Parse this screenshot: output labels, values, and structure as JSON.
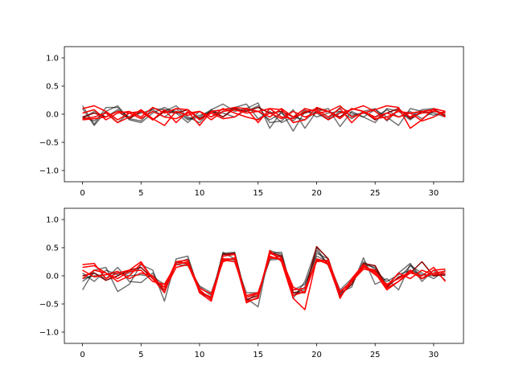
{
  "chart_data": [
    {
      "type": "line",
      "title": "",
      "xlabel": "",
      "ylabel": "",
      "xlim": [
        -1.55,
        32.55
      ],
      "ylim": [
        -1.2,
        1.2
      ],
      "xticks": [
        0,
        5,
        10,
        15,
        20,
        25,
        30
      ],
      "yticks": [
        -1.0,
        -0.5,
        0.0,
        0.5,
        1.0
      ],
      "ytick_labels": [
        "−1.0",
        "−0.5",
        "0.0",
        "0.5",
        "1.0"
      ],
      "grid": false,
      "legend": "none",
      "x": [
        0,
        1,
        2,
        3,
        4,
        5,
        6,
        7,
        8,
        9,
        10,
        11,
        12,
        13,
        14,
        15,
        16,
        17,
        18,
        19,
        20,
        21,
        22,
        23,
        24,
        25,
        26,
        27,
        28,
        29,
        30,
        31
      ],
      "series": [
        {
          "color": "#000000",
          "opacity": 0.55,
          "values": [
            0.15,
            -0.18,
            0.12,
            0.12,
            -0.08,
            -0.12,
            0.1,
            0.08,
            0.05,
            -0.1,
            -0.05,
            0.08,
            0.18,
            0.05,
            0.1,
            0.2,
            -0.25,
            0.05,
            -0.3,
            0.05,
            0.02,
            -0.1,
            0.05,
            -0.08,
            0.05,
            0.1,
            -0.12,
            0.08,
            -0.05,
            0.08,
            0.1,
            -0.03
          ]
        },
        {
          "color": "#000000",
          "opacity": 0.55,
          "values": [
            -0.05,
            -0.12,
            0.05,
            0.15,
            -0.1,
            -0.15,
            0.02,
            0.12,
            0.02,
            -0.15,
            0.05,
            -0.05,
            0.05,
            0.1,
            0.05,
            0.15,
            -0.15,
            -0.12,
            0.08,
            -0.25,
            0.05,
            0.1,
            -0.22,
            0.05,
            -0.05,
            0.08,
            -0.05,
            -0.2,
            0.1,
            0.05,
            -0.02,
            0.05
          ]
        },
        {
          "color": "#000000",
          "opacity": 0.55,
          "values": [
            0.1,
            -0.2,
            0.05,
            -0.15,
            0.02,
            0.05,
            -0.1,
            0.05,
            0.15,
            -0.05,
            -0.15,
            0.08,
            -0.05,
            0.12,
            0.18,
            -0.08,
            0.05,
            -0.15,
            -0.05,
            -0.1,
            0.05,
            -0.08,
            0.12,
            0.02,
            -0.05,
            -0.15,
            0.1,
            0.05,
            -0.1,
            0.05,
            0.02,
            -0.05
          ]
        },
        {
          "color": "#000000",
          "opacity": 0.55,
          "values": [
            -0.08,
            0.05,
            -0.05,
            0.08,
            -0.05,
            0.02,
            0.08,
            -0.05,
            0.1,
            -0.08,
            -0.02,
            0.05,
            0.02,
            -0.05,
            0.08,
            0.05,
            -0.1,
            0.02,
            -0.12,
            0.08,
            -0.05,
            0.02,
            0.05,
            -0.02,
            0.02,
            -0.05,
            0.08,
            -0.05,
            0.05,
            -0.08,
            0.05,
            0.02
          ]
        },
        {
          "color": "#8b0000",
          "opacity": 1.0,
          "values": [
            -0.05,
            0.02,
            -0.05,
            0.05,
            -0.08,
            0.05,
            -0.1,
            0.05,
            0.02,
            0.08,
            -0.08,
            0.05,
            -0.05,
            0.1,
            0.05,
            0.12,
            0.02,
            0.05,
            -0.05,
            0.02,
            0.1,
            0.05,
            -0.05,
            0.1,
            0.05,
            -0.1,
            0.02,
            0.1,
            -0.08,
            0.05,
            0.08,
            -0.02
          ]
        },
        {
          "color": "#ff0000",
          "opacity": 1.0,
          "values": [
            0.1,
            0.15,
            0.05,
            -0.1,
            0.02,
            0.05,
            -0.1,
            0.08,
            -0.15,
            0.05,
            -0.2,
            0.05,
            0.08,
            0.12,
            0.1,
            -0.15,
            0.1,
            0.08,
            -0.15,
            -0.1,
            0.12,
            0.05,
            0.15,
            -0.05,
            0.02,
            0.08,
            0.15,
            0.12,
            -0.25,
            -0.1,
            0.1,
            0.05
          ]
        },
        {
          "color": "#ff0000",
          "opacity": 1.0,
          "values": [
            -0.08,
            -0.05,
            0.02,
            -0.15,
            -0.05,
            0.08,
            -0.08,
            -0.2,
            0.05,
            -0.02,
            0.05,
            -0.1,
            0.05,
            0.08,
            0.02,
            0.05,
            0.1,
            -0.05,
            -0.08,
            0.05,
            0.08,
            -0.05,
            0.1,
            -0.15,
            0.05,
            -0.08,
            -0.05,
            0.05,
            0.02,
            -0.12,
            -0.05,
            0.05
          ]
        },
        {
          "color": "#ff0000",
          "opacity": 1.0,
          "values": [
            0.02,
            0.08,
            -0.1,
            0.02,
            0.05,
            -0.05,
            0.12,
            0.02,
            0.1,
            0.08,
            -0.1,
            0.02,
            -0.08,
            -0.05,
            0.1,
            0.05,
            -0.05,
            0.1,
            -0.05,
            0.1,
            0.05,
            -0.1,
            0.02,
            0.08,
            0.15,
            0.05,
            -0.1,
            0.08,
            -0.05,
            0.02,
            0.05,
            0.02
          ]
        },
        {
          "color": "#ff0000",
          "opacity": 1.0,
          "values": [
            -0.1,
            -0.08,
            -0.05,
            0.05,
            0.02,
            -0.08,
            0.05,
            -0.05,
            -0.08,
            0.02,
            0.05,
            -0.05,
            0.1,
            0.02,
            -0.05,
            -0.1,
            0.02,
            -0.08,
            0.05,
            -0.05,
            0.02,
            0.05,
            -0.08,
            0.1,
            0.05,
            -0.05,
            0.02,
            -0.05,
            0.02,
            0.05,
            0.08,
            -0.05
          ]
        }
      ]
    },
    {
      "type": "line",
      "title": "",
      "xlabel": "",
      "ylabel": "",
      "xlim": [
        -1.55,
        32.55
      ],
      "ylim": [
        -1.2,
        1.2
      ],
      "xticks": [
        0,
        5,
        10,
        15,
        20,
        25,
        30
      ],
      "yticks": [
        -1.0,
        -0.5,
        0.0,
        0.5,
        1.0
      ],
      "ytick_labels": [
        "−1.0",
        "−0.5",
        "0.0",
        "0.5",
        "1.0"
      ],
      "grid": false,
      "legend": "none",
      "x": [
        0,
        1,
        2,
        3,
        4,
        5,
        6,
        7,
        8,
        9,
        10,
        11,
        12,
        13,
        14,
        15,
        16,
        17,
        18,
        19,
        20,
        21,
        22,
        23,
        24,
        25,
        26,
        27,
        28,
        29,
        30,
        31
      ],
      "series": [
        {
          "color": "#000000",
          "opacity": 0.55,
          "values": [
            -0.25,
            0.1,
            0.15,
            -0.28,
            -0.15,
            0.2,
            0.1,
            -0.45,
            0.3,
            0.35,
            -0.3,
            -0.4,
            0.4,
            0.42,
            -0.4,
            -0.55,
            0.45,
            0.38,
            -0.4,
            -0.1,
            0.5,
            0.18,
            -0.3,
            -0.2,
            0.32,
            -0.15,
            -0.05,
            -0.25,
            0.2,
            -0.1,
            0.1,
            -0.08
          ]
        },
        {
          "color": "#000000",
          "opacity": 0.55,
          "values": [
            -0.1,
            0.05,
            -0.05,
            0.15,
            -0.1,
            -0.12,
            0.05,
            -0.3,
            0.25,
            0.2,
            -0.2,
            -0.35,
            0.35,
            0.4,
            -0.45,
            -0.4,
            0.4,
            0.42,
            -0.35,
            -0.2,
            0.45,
            0.2,
            -0.38,
            -0.1,
            0.2,
            0.15,
            -0.2,
            0.05,
            0.22,
            -0.05,
            0.05,
            0.0
          ]
        },
        {
          "color": "#000000",
          "opacity": 0.55,
          "values": [
            0.05,
            -0.1,
            0.1,
            0.02,
            0.05,
            0.15,
            -0.05,
            -0.25,
            0.22,
            0.3,
            -0.25,
            -0.42,
            0.42,
            0.3,
            -0.45,
            -0.3,
            0.3,
            0.35,
            -0.3,
            -0.25,
            0.4,
            0.3,
            -0.32,
            -0.15,
            0.25,
            0.12,
            -0.15,
            -0.05,
            0.18,
            0.05,
            -0.05,
            0.1
          ]
        },
        {
          "color": "#000000",
          "opacity": 0.55,
          "values": [
            -0.05,
            0.0,
            0.02,
            0.05,
            0.0,
            0.02,
            -0.02,
            -0.15,
            0.2,
            0.18,
            -0.18,
            -0.3,
            0.3,
            0.28,
            -0.3,
            -0.3,
            0.28,
            0.3,
            -0.25,
            -0.15,
            0.35,
            0.25,
            -0.25,
            -0.05,
            0.15,
            0.1,
            -0.1,
            0.02,
            0.1,
            0.02,
            0.0,
            0.05
          ]
        },
        {
          "color": "#8b0000",
          "opacity": 1.0,
          "values": [
            0.0,
            0.05,
            -0.08,
            0.0,
            0.1,
            0.15,
            -0.05,
            -0.2,
            0.25,
            0.28,
            -0.3,
            -0.38,
            0.38,
            0.4,
            -0.42,
            -0.35,
            0.42,
            0.35,
            -0.3,
            -0.3,
            0.52,
            0.3,
            -0.35,
            -0.15,
            0.22,
            0.18,
            -0.2,
            -0.02,
            0.05,
            0.25,
            0.0,
            0.02
          ]
        },
        {
          "color": "#ff0000",
          "opacity": 1.0,
          "values": [
            0.2,
            0.22,
            -0.05,
            0.05,
            0.1,
            0.25,
            -0.05,
            -0.3,
            0.25,
            0.28,
            -0.3,
            -0.45,
            0.3,
            0.3,
            -0.45,
            -0.4,
            0.45,
            0.25,
            -0.4,
            -0.6,
            0.3,
            0.25,
            -0.4,
            -0.05,
            0.2,
            0.05,
            -0.25,
            -0.1,
            0.05,
            0.0,
            0.15,
            -0.1
          ]
        },
        {
          "color": "#ff0000",
          "opacity": 1.0,
          "values": [
            0.15,
            0.18,
            0.05,
            -0.1,
            0.0,
            0.22,
            -0.05,
            -0.2,
            0.25,
            0.22,
            -0.25,
            -0.42,
            0.35,
            0.38,
            -0.48,
            -0.38,
            0.4,
            0.32,
            -0.35,
            -0.28,
            0.3,
            0.2,
            -0.38,
            -0.1,
            0.15,
            0.1,
            -0.22,
            -0.1,
            0.1,
            -0.05,
            0.1,
            0.12
          ]
        },
        {
          "color": "#ff0000",
          "opacity": 1.0,
          "values": [
            -0.05,
            0.1,
            0.05,
            -0.05,
            0.08,
            0.1,
            -0.1,
            -0.15,
            0.2,
            0.25,
            -0.22,
            -0.32,
            0.25,
            0.32,
            -0.38,
            -0.32,
            0.35,
            0.28,
            -0.25,
            -0.22,
            0.25,
            0.28,
            -0.3,
            -0.08,
            0.18,
            0.02,
            -0.15,
            -0.05,
            0.08,
            -0.05,
            0.05,
            0.08
          ]
        },
        {
          "color": "#ff0000",
          "opacity": 1.0,
          "values": [
            0.1,
            -0.02,
            0.02,
            0.08,
            -0.05,
            0.05,
            0.0,
            -0.25,
            0.15,
            0.2,
            -0.28,
            -0.38,
            0.28,
            0.25,
            -0.35,
            -0.3,
            0.32,
            0.3,
            -0.2,
            -0.3,
            0.28,
            0.22,
            -0.28,
            -0.1,
            0.12,
            0.08,
            -0.18,
            0.05,
            -0.05,
            0.1,
            0.02,
            0.05
          ]
        }
      ]
    }
  ]
}
